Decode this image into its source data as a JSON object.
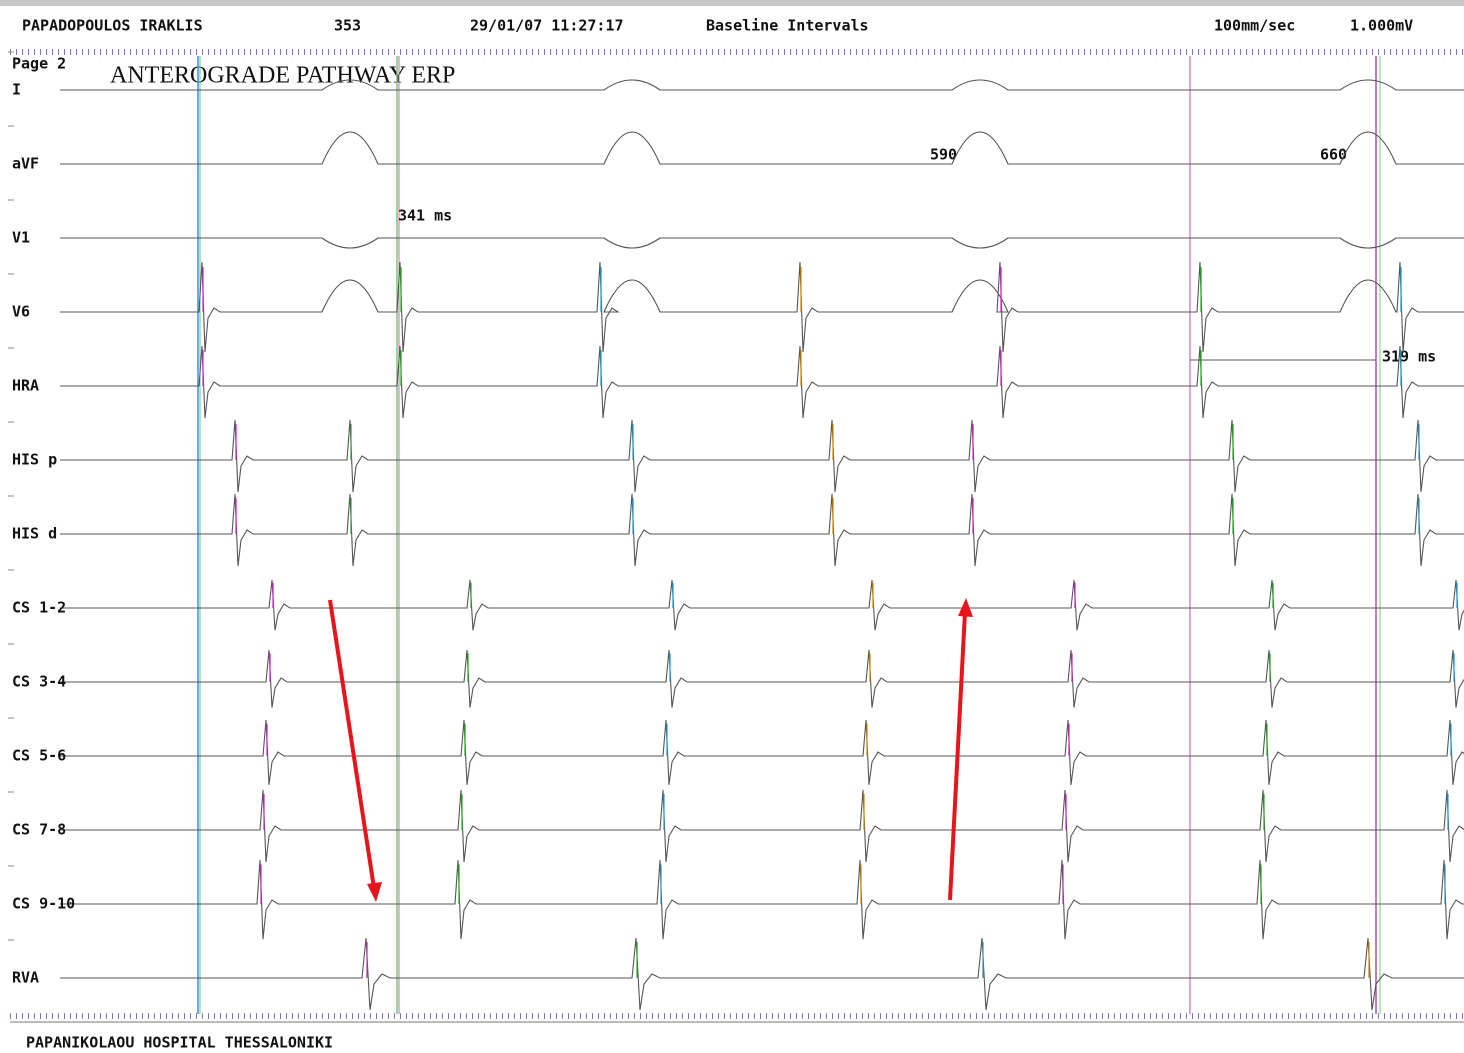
{
  "header": {
    "patient": "PAPADOPOULOS IRAKLIS",
    "id": "353",
    "datetime": "29/01/07 11:27:17",
    "protocol": "Baseline Intervals",
    "speed": "100mm/sec",
    "gain": "1.000mV"
  },
  "page": "Page 2",
  "title": "ANTEROGRADE PATHWAY ERP",
  "channels": [
    "I",
    "aVF",
    "V1",
    "V6",
    "HRA",
    "HIS p",
    "HIS d",
    "CS 1-2",
    "CS 3-4",
    "CS 5-6",
    "CS 7-8",
    "CS 9-10",
    "RVA"
  ],
  "annotations": [
    "341 ms",
    "590",
    "660",
    "319 ms"
  ],
  "footer": "PAPANIKOLAOU HOSPITAL THESSALONIKI"
}
